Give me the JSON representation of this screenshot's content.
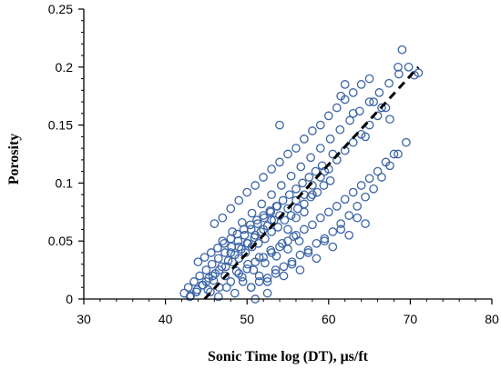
{
  "chart_data": {
    "type": "scatter",
    "title": "",
    "xlabel": "Sonic Time log (DT), μs/ft",
    "ylabel": "Porosity",
    "xlim": [
      30,
      80
    ],
    "ylim": [
      0,
      0.25
    ],
    "x_ticks": [
      30,
      40,
      50,
      60,
      70,
      80
    ],
    "y_ticks": [
      0,
      0.05,
      0.1,
      0.15,
      0.2,
      0.25
    ],
    "x_tick_labels": [
      "30",
      "40",
      "50",
      "60",
      "70",
      "80"
    ],
    "y_tick_labels": [
      "0",
      "0.05",
      "0.1",
      "0.15",
      "0.2",
      "0.25"
    ],
    "grid": false,
    "legend": "none",
    "marker_color": "#3b64a6",
    "trend_color": "#000000",
    "trend_line": {
      "style": "dashed",
      "x": [
        44.8,
        71.0
      ],
      "y": [
        0.0,
        0.2
      ]
    },
    "series": [
      {
        "marker": "open-circle",
        "x": [
          42.3,
          42.8,
          43.1,
          43.5,
          43.9,
          44.2,
          44.6,
          45.0,
          45.3,
          45.7,
          46.1,
          46.5,
          46.9,
          47.3,
          47.7,
          48.1,
          48.5,
          48.9,
          49.3,
          49.7,
          50.1,
          50.5,
          50.9,
          51.3,
          51.7,
          52.1,
          52.5,
          52.9,
          53.3,
          53.7,
          43.0,
          43.8,
          44.5,
          45.2,
          45.9,
          46.6,
          47.3,
          48.0,
          48.7,
          49.4,
          50.1,
          50.8,
          51.5,
          52.2,
          52.9,
          53.6,
          54.3,
          55.0,
          55.7,
          56.4,
          44.0,
          44.8,
          45.6,
          46.4,
          47.2,
          48.0,
          48.8,
          49.6,
          50.4,
          51.2,
          52.0,
          52.8,
          53.6,
          54.4,
          55.2,
          56.0,
          56.8,
          57.6,
          58.4,
          59.2,
          45.5,
          46.5,
          47.5,
          48.5,
          49.5,
          50.5,
          51.5,
          52.5,
          53.5,
          54.5,
          55.5,
          56.5,
          57.5,
          58.5,
          59.5,
          60.5,
          61.5,
          62.5,
          63.5,
          64.5,
          47.0,
          48.2,
          49.4,
          50.6,
          51.8,
          53.0,
          54.2,
          55.4,
          56.6,
          57.8,
          59.0,
          60.2,
          61.4,
          62.6,
          63.8,
          65.0,
          66.2,
          67.4,
          68.6,
          69.8,
          46.0,
          47.0,
          48.0,
          49.0,
          50.0,
          51.0,
          52.0,
          53.0,
          54.0,
          55.0,
          56.0,
          57.0,
          58.0,
          59.0,
          60.0,
          61.0,
          62.0,
          63.0,
          64.0,
          65.0,
          49.0,
          50.0,
          51.0,
          52.0,
          53.0,
          54.0,
          55.0,
          56.0,
          57.0,
          58.0,
          59.0,
          60.0,
          61.0,
          62.0,
          63.0,
          64.0,
          65.0,
          66.0,
          67.0,
          68.0,
          50.5,
          51.5,
          52.5,
          53.5,
          54.5,
          55.5,
          56.5,
          57.5,
          58.5,
          59.5,
          60.5,
          61.5,
          62.5,
          63.5,
          64.5,
          65.5,
          66.5,
          67.5,
          68.5,
          69.5,
          45.0,
          45.8,
          46.6,
          47.4,
          48.2,
          49.0,
          49.8,
          50.6,
          51.4,
          52.2,
          53.0,
          53.8,
          54.6,
          55.4,
          56.2,
          57.0,
          57.8,
          58.6,
          59.4,
          60.2,
          48.0,
          49.0,
          50.0,
          51.0,
          52.0,
          53.0,
          54.0,
          55.0,
          56.0,
          57.0,
          58.0,
          59.0,
          60.0,
          61.0,
          62.0,
          63.0,
          64.0,
          65.0,
          66.0,
          67.0,
          69.0,
          68.5,
          70.5,
          71.0,
          67.5,
          66.5,
          65.5,
          62.0,
          61.5,
          63.0,
          64.5,
          59.5,
          58.0,
          60.5,
          57.0,
          56.0,
          55.0,
          54.0,
          52.5,
          51.0
        ],
        "y": [
          0.005,
          0.01,
          0.003,
          0.015,
          0.008,
          0.02,
          0.012,
          0.025,
          0.018,
          0.03,
          0.022,
          0.035,
          0.028,
          0.04,
          0.033,
          0.045,
          0.038,
          0.05,
          0.043,
          0.055,
          0.048,
          0.06,
          0.053,
          0.065,
          0.058,
          0.07,
          0.063,
          0.075,
          0.068,
          0.08,
          0.002,
          0.006,
          0.012,
          0.008,
          0.016,
          0.01,
          0.02,
          0.015,
          0.024,
          0.019,
          0.03,
          0.025,
          0.036,
          0.031,
          0.042,
          0.037,
          0.048,
          0.043,
          0.054,
          0.05,
          0.032,
          0.036,
          0.04,
          0.044,
          0.048,
          0.052,
          0.056,
          0.06,
          0.064,
          0.068,
          0.072,
          0.076,
          0.08,
          0.085,
          0.09,
          0.095,
          0.1,
          0.105,
          0.11,
          0.115,
          0.006,
          0.002,
          0.01,
          0.005,
          0.015,
          0.01,
          0.02,
          0.015,
          0.025,
          0.02,
          0.03,
          0.025,
          0.04,
          0.035,
          0.05,
          0.045,
          0.06,
          0.055,
          0.07,
          0.065,
          0.05,
          0.058,
          0.066,
          0.074,
          0.082,
          0.09,
          0.098,
          0.106,
          0.114,
          0.122,
          0.13,
          0.138,
          0.146,
          0.154,
          0.162,
          0.17,
          0.178,
          0.186,
          0.194,
          0.2,
          0.065,
          0.07,
          0.078,
          0.085,
          0.092,
          0.098,
          0.105,
          0.112,
          0.118,
          0.125,
          0.13,
          0.138,
          0.145,
          0.15,
          0.158,
          0.165,
          0.172,
          0.178,
          0.185,
          0.19,
          0.022,
          0.026,
          0.032,
          0.036,
          0.04,
          0.045,
          0.05,
          0.055,
          0.06,
          0.064,
          0.07,
          0.075,
          0.08,
          0.086,
          0.092,
          0.098,
          0.104,
          0.11,
          0.118,
          0.125,
          0.01,
          0.015,
          0.018,
          0.022,
          0.028,
          0.032,
          0.038,
          0.042,
          0.048,
          0.052,
          0.058,
          0.065,
          0.072,
          0.08,
          0.088,
          0.095,
          0.105,
          0.115,
          0.125,
          0.135,
          0.015,
          0.02,
          0.025,
          0.028,
          0.032,
          0.035,
          0.04,
          0.045,
          0.048,
          0.052,
          0.058,
          0.062,
          0.068,
          0.072,
          0.078,
          0.082,
          0.088,
          0.092,
          0.098,
          0.102,
          0.04,
          0.045,
          0.048,
          0.055,
          0.06,
          0.068,
          0.072,
          0.078,
          0.085,
          0.09,
          0.098,
          0.105,
          0.112,
          0.12,
          0.128,
          0.135,
          0.142,
          0.15,
          0.158,
          0.165,
          0.215,
          0.2,
          0.193,
          0.195,
          0.155,
          0.165,
          0.17,
          0.185,
          0.175,
          0.16,
          0.14,
          0.11,
          0.09,
          0.125,
          0.075,
          0.07,
          0.06,
          0.15,
          0.005,
          0.0
        ]
      }
    ]
  }
}
